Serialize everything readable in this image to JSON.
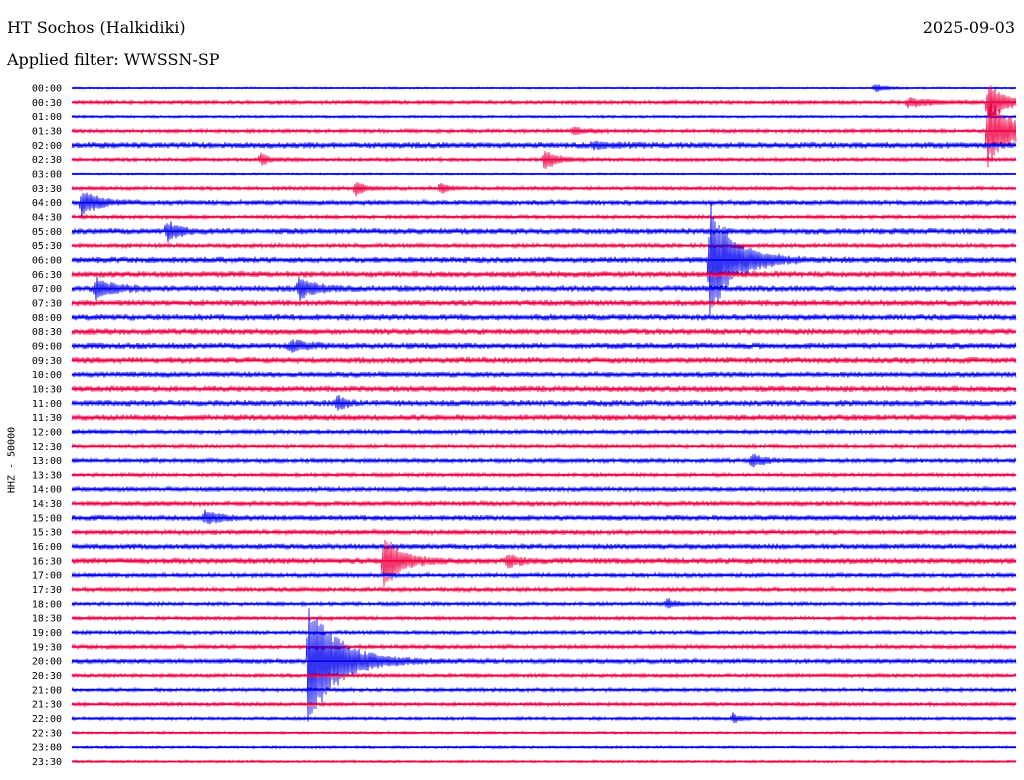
{
  "station_title": "HT Sochos (Halkidiki)",
  "date": "2025-09-03",
  "filter_label": "Applied filter: WWSSN-SP",
  "channel_label": "HHZ - 50000",
  "colors": {
    "even": "#0000ee",
    "odd": "#ee0044"
  },
  "chart_data": {
    "type": "line",
    "title": "HT Sochos (Halkidiki)",
    "xlabel": "",
    "ylabel": "HHZ - 50000",
    "rows": [
      "00:00",
      "00:30",
      "01:00",
      "01:30",
      "02:00",
      "02:30",
      "03:00",
      "03:30",
      "04:00",
      "04:30",
      "05:00",
      "05:30",
      "06:00",
      "06:30",
      "07:00",
      "07:30",
      "08:00",
      "08:30",
      "09:00",
      "09:30",
      "10:00",
      "10:30",
      "11:00",
      "11:30",
      "12:00",
      "12:30",
      "13:00",
      "13:30",
      "14:00",
      "14:30",
      "15:00",
      "15:30",
      "16:00",
      "16:30",
      "17:00",
      "17:30",
      "18:00",
      "18:30",
      "19:00",
      "19:30",
      "20:00",
      "20:30",
      "21:00",
      "21:30",
      "22:00",
      "22:30",
      "23:00",
      "23:30"
    ],
    "noise_level": [
      0.3,
      0.6,
      0.4,
      0.6,
      1.0,
      0.6,
      0.3,
      0.6,
      0.8,
      0.6,
      1.0,
      0.7,
      1.0,
      1.0,
      1.0,
      1.0,
      1.0,
      1.0,
      1.0,
      1.0,
      0.9,
      1.0,
      1.0,
      1.0,
      0.7,
      0.6,
      0.7,
      0.6,
      0.8,
      0.8,
      0.9,
      0.8,
      0.9,
      1.0,
      0.7,
      0.7,
      0.6,
      0.6,
      0.6,
      0.7,
      0.8,
      0.6,
      0.6,
      0.6,
      0.5,
      0.4,
      0.4,
      0.4
    ],
    "events": [
      {
        "row": 0,
        "pos": 0.85,
        "amp": 0.8,
        "dur": 0.012
      },
      {
        "row": 1,
        "pos": 0.885,
        "amp": 0.8,
        "dur": 0.03
      },
      {
        "row": 1,
        "pos": 0.97,
        "amp": 3.5,
        "dur": 0.02
      },
      {
        "row": 3,
        "pos": 0.97,
        "amp": 6.0,
        "dur": 0.03
      },
      {
        "row": 3,
        "pos": 0.53,
        "amp": 0.6,
        "dur": 0.02
      },
      {
        "row": 4,
        "pos": 0.55,
        "amp": 0.5,
        "dur": 0.03
      },
      {
        "row": 5,
        "pos": 0.2,
        "amp": 1.2,
        "dur": 0.01
      },
      {
        "row": 5,
        "pos": 0.5,
        "amp": 1.8,
        "dur": 0.015
      },
      {
        "row": 7,
        "pos": 0.3,
        "amp": 1.5,
        "dur": 0.01
      },
      {
        "row": 7,
        "pos": 0.39,
        "amp": 1.2,
        "dur": 0.008
      },
      {
        "row": 8,
        "pos": 0.01,
        "amp": 2.2,
        "dur": 0.02
      },
      {
        "row": 10,
        "pos": 0.1,
        "amp": 1.8,
        "dur": 0.015
      },
      {
        "row": 12,
        "pos": 0.675,
        "amp": 10.0,
        "dur": 0.03
      },
      {
        "row": 14,
        "pos": 0.025,
        "amp": 1.8,
        "dur": 0.02
      },
      {
        "row": 14,
        "pos": 0.24,
        "amp": 1.8,
        "dur": 0.02
      },
      {
        "row": 18,
        "pos": 0.23,
        "amp": 1.0,
        "dur": 0.02
      },
      {
        "row": 22,
        "pos": 0.28,
        "amp": 1.3,
        "dur": 0.01
      },
      {
        "row": 26,
        "pos": 0.72,
        "amp": 1.2,
        "dur": 0.015
      },
      {
        "row": 30,
        "pos": 0.14,
        "amp": 1.0,
        "dur": 0.02
      },
      {
        "row": 33,
        "pos": 0.33,
        "amp": 5.0,
        "dur": 0.02
      },
      {
        "row": 33,
        "pos": 0.46,
        "amp": 1.2,
        "dur": 0.015
      },
      {
        "row": 36,
        "pos": 0.63,
        "amp": 1.0,
        "dur": 0.01
      },
      {
        "row": 40,
        "pos": 0.25,
        "amp": 11.0,
        "dur": 0.035
      },
      {
        "row": 44,
        "pos": 0.7,
        "amp": 0.9,
        "dur": 0.01
      }
    ]
  }
}
